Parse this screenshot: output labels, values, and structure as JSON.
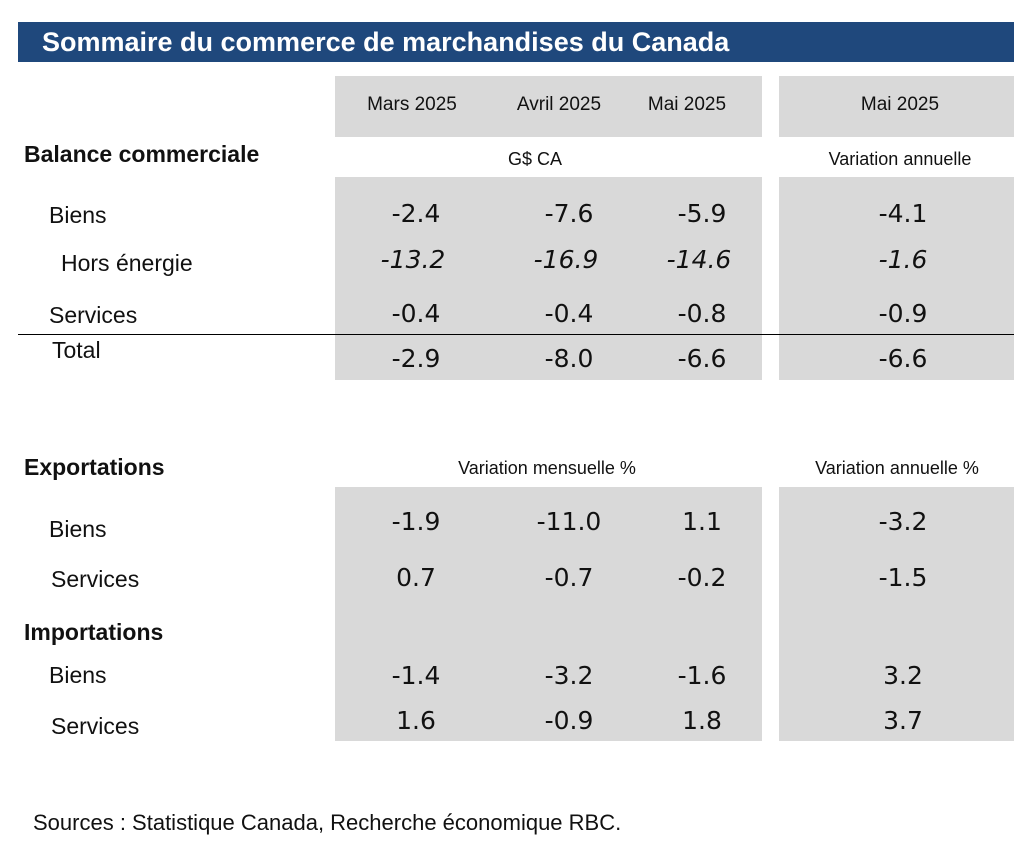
{
  "title": "Sommaire du commerce de marchandises du Canada",
  "columns": [
    "Mars 2025",
    "Avril 2025",
    "Mai 2025"
  ],
  "annual_column": "Mai 2025",
  "balance": {
    "heading": "Balance commerciale",
    "unit": "G$ CA",
    "annual_label": "Variation annuelle",
    "rows": [
      {
        "label": "Biens",
        "values": [
          "-2.4",
          "-7.6",
          "-5.9"
        ],
        "annual": "-4.1"
      },
      {
        "label": "Hors énergie",
        "values": [
          "-13.2",
          "-16.9",
          "-14.6"
        ],
        "annual": "-1.6"
      },
      {
        "label": "Services",
        "values": [
          "-0.4",
          "-0.4",
          "-0.8"
        ],
        "annual": "-0.9"
      },
      {
        "label": "Total",
        "values": [
          "-2.9",
          "-8.0",
          "-6.6"
        ],
        "annual": "-6.6"
      }
    ]
  },
  "exports": {
    "heading": "Exportations",
    "monthly_label": "Variation mensuelle %",
    "annual_label": "Variation annuelle %",
    "rows": [
      {
        "label": "Biens",
        "values": [
          "-1.9",
          "-11.0",
          "1.1"
        ],
        "annual": "-3.2"
      },
      {
        "label": "Services",
        "values": [
          "0.7",
          "-0.7",
          "-0.2"
        ],
        "annual": "-1.5"
      }
    ]
  },
  "imports": {
    "heading": "Importations",
    "rows": [
      {
        "label": "Biens",
        "values": [
          "-1.4",
          "-3.2",
          "-1.6"
        ],
        "annual": "3.2"
      },
      {
        "label": "Services",
        "values": [
          "1.6",
          "-0.9",
          "1.8"
        ],
        "annual": "3.7"
      }
    ]
  },
  "source": "Sources : Statistique Canada, Recherche économique RBC.",
  "colors": {
    "title_bar": "#1f487c",
    "shade": "#d9d9d9"
  }
}
